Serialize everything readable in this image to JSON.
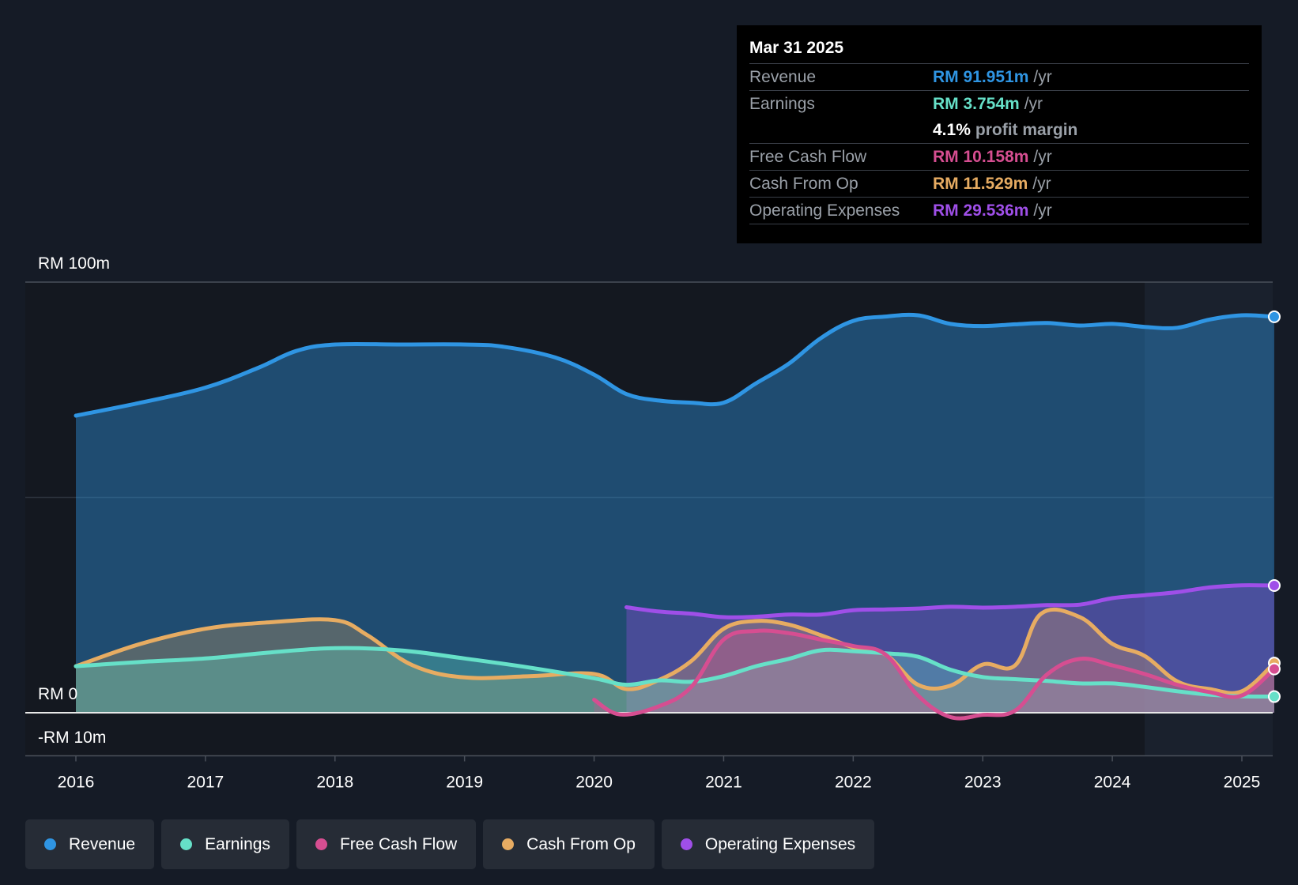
{
  "chart_data": {
    "type": "area",
    "title": "",
    "xlabel": "",
    "ylabel": "",
    "ylim": [
      -10,
      100
    ],
    "x_ticks": [
      "2016",
      "2017",
      "2018",
      "2019",
      "2020",
      "2021",
      "2022",
      "2023",
      "2024",
      "2025"
    ],
    "y_tick_labels": [
      {
        "value": 100,
        "label": "RM 100m"
      },
      {
        "value": 0,
        "label": "RM 0"
      },
      {
        "value": -10,
        "label": "-RM 10m"
      }
    ],
    "grid": true,
    "legend_position": "bottom-left",
    "forecast_shading_start": 2024.25,
    "series": [
      {
        "name": "Revenue",
        "color": "#2f95e3",
        "fill": true,
        "x": [
          2016,
          2016.5,
          2017,
          2017.4,
          2017.7,
          2018,
          2018.5,
          2019,
          2019.3,
          2019.7,
          2020,
          2020.25,
          2020.5,
          2020.75,
          2021,
          2021.25,
          2021.5,
          2021.75,
          2022,
          2022.25,
          2022.5,
          2022.75,
          2023,
          2023.25,
          2023.5,
          2023.75,
          2024,
          2024.25,
          2024.5,
          2024.75,
          2025,
          2025.25
        ],
        "values": [
          69,
          72,
          75.5,
          80,
          84,
          85.5,
          85.5,
          85.5,
          85,
          82.5,
          78.5,
          74,
          72.5,
          72,
          72,
          76.5,
          81,
          87,
          91,
          92,
          92.3,
          90.3,
          89.8,
          90.2,
          90.5,
          89.9,
          90.3,
          89.6,
          89.4,
          91.3,
          92.3,
          91.951
        ]
      },
      {
        "name": "Earnings",
        "color": "#66e0c8",
        "fill": true,
        "x": [
          2016,
          2016.5,
          2017,
          2017.5,
          2018,
          2018.5,
          2019,
          2019.5,
          2020,
          2020.25,
          2020.5,
          2020.75,
          2021,
          2021.25,
          2021.5,
          2021.75,
          2022,
          2022.25,
          2022.5,
          2022.75,
          2023,
          2023.25,
          2023.5,
          2023.75,
          2024,
          2024.25,
          2024.5,
          2024.75,
          2025,
          2025.25
        ],
        "values": [
          10.8,
          11.8,
          12.6,
          14,
          15,
          14.5,
          12.6,
          10.5,
          8,
          6.5,
          7.5,
          7.2,
          8.5,
          10.8,
          12.5,
          14.5,
          14.3,
          13.8,
          13,
          10,
          8.3,
          7.8,
          7.4,
          6.8,
          6.8,
          6,
          5,
          4.2,
          3.8,
          3.754
        ]
      },
      {
        "name": "Free Cash Flow",
        "color": "#d64e91",
        "fill": true,
        "x": [
          2020,
          2020.2,
          2020.5,
          2020.75,
          2021,
          2021.25,
          2021.5,
          2021.75,
          2022,
          2022.25,
          2022.5,
          2022.75,
          2023,
          2023.25,
          2023.5,
          2023.75,
          2024,
          2024.25,
          2024.5,
          2024.75,
          2025,
          2025.25
        ],
        "values": [
          3,
          -0.4,
          1.5,
          6,
          17,
          19,
          18.5,
          17,
          15.5,
          13.5,
          4,
          -1,
          -0.5,
          0.5,
          9,
          12.5,
          11,
          9,
          6.5,
          4.8,
          4,
          10.158
        ]
      },
      {
        "name": "Cash From Op",
        "color": "#e7ac62",
        "fill": true,
        "x": [
          2016,
          2016.5,
          2017,
          2017.5,
          2018,
          2018.25,
          2018.6,
          2019,
          2019.5,
          2020,
          2020.25,
          2020.5,
          2020.75,
          2021,
          2021.25,
          2021.5,
          2021.75,
          2022,
          2022.25,
          2022.5,
          2022.75,
          2023,
          2023.25,
          2023.45,
          2023.75,
          2024,
          2024.25,
          2024.5,
          2024.75,
          2025,
          2025.25
        ],
        "values": [
          10.8,
          16,
          19.5,
          21,
          21.5,
          18,
          11,
          8.2,
          8.5,
          9,
          5.5,
          7.6,
          12,
          19.5,
          21.3,
          20.5,
          18,
          15.2,
          13.5,
          6.5,
          6.3,
          11.2,
          11,
          23,
          22.2,
          16,
          13.2,
          7.3,
          5.5,
          5,
          11.529
        ]
      },
      {
        "name": "Operating Expenses",
        "color": "#9f4fe8",
        "fill": true,
        "x": [
          2020.25,
          2020.5,
          2020.75,
          2021,
          2021.25,
          2021.5,
          2021.75,
          2022,
          2022.25,
          2022.5,
          2022.75,
          2023,
          2023.25,
          2023.5,
          2023.75,
          2024,
          2024.25,
          2024.5,
          2024.75,
          2025,
          2025.25
        ],
        "values": [
          24.5,
          23.5,
          23,
          22.2,
          22.3,
          22.8,
          22.8,
          23.8,
          24,
          24.2,
          24.6,
          24.4,
          24.6,
          25,
          25.1,
          26.6,
          27.3,
          28,
          29.1,
          29.6,
          29.536
        ]
      }
    ]
  },
  "tooltip": {
    "date": "Mar 31 2025",
    "rows": [
      {
        "label": "Revenue",
        "value": "RM 91.951m",
        "unit": "/yr",
        "color": "#2f95e3"
      },
      {
        "label": "Earnings",
        "value": "RM 3.754m",
        "unit": "/yr",
        "color": "#66e0c8"
      },
      {
        "label": "Free Cash Flow",
        "value": "RM 10.158m",
        "unit": "/yr",
        "color": "#d64e91"
      },
      {
        "label": "Cash From Op",
        "value": "RM 11.529m",
        "unit": "/yr",
        "color": "#e7ac62"
      },
      {
        "label": "Operating Expenses",
        "value": "RM 29.536m",
        "unit": "/yr",
        "color": "#9f4fe8"
      }
    ],
    "margin_value": "4.1%",
    "margin_label": "profit margin"
  },
  "legend": [
    {
      "label": "Revenue",
      "color": "#2f95e3"
    },
    {
      "label": "Earnings",
      "color": "#66e0c8"
    },
    {
      "label": "Free Cash Flow",
      "color": "#d64e91"
    },
    {
      "label": "Cash From Op",
      "color": "#e7ac62"
    },
    {
      "label": "Operating Expenses",
      "color": "#9f4fe8"
    }
  ]
}
